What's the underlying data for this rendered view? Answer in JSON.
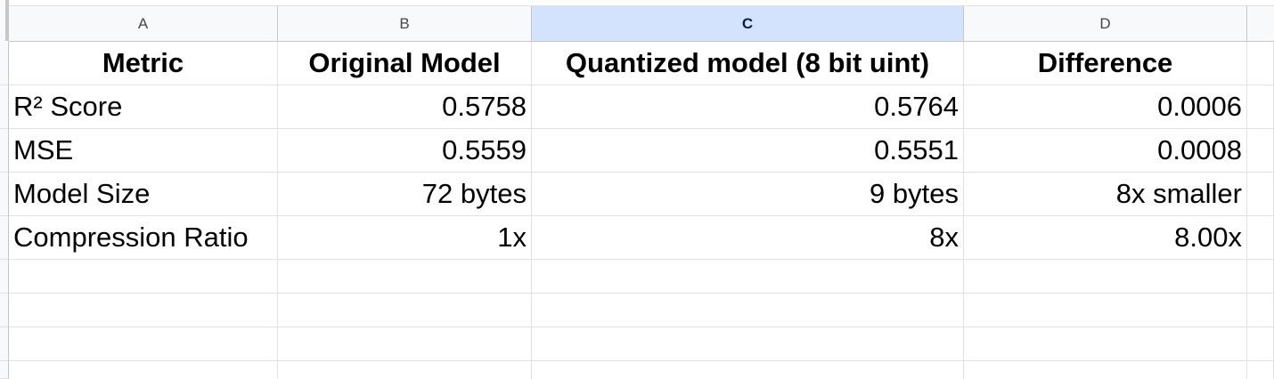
{
  "columns": [
    "A",
    "B",
    "C",
    "D"
  ],
  "selected_column": "C",
  "rows": [
    [
      "Metric",
      "Original Model",
      "Quantized model (8 bit uint)",
      "Difference"
    ],
    [
      "R² Score",
      "0.5758",
      "0.5764",
      "0.0006"
    ],
    [
      "MSE",
      "0.5559",
      "0.5551",
      "0.0008"
    ],
    [
      "Model Size",
      "72 bytes",
      "9 bytes",
      "8x smaller"
    ],
    [
      "Compression Ratio",
      "1x",
      "8x",
      "8.00x"
    ]
  ]
}
